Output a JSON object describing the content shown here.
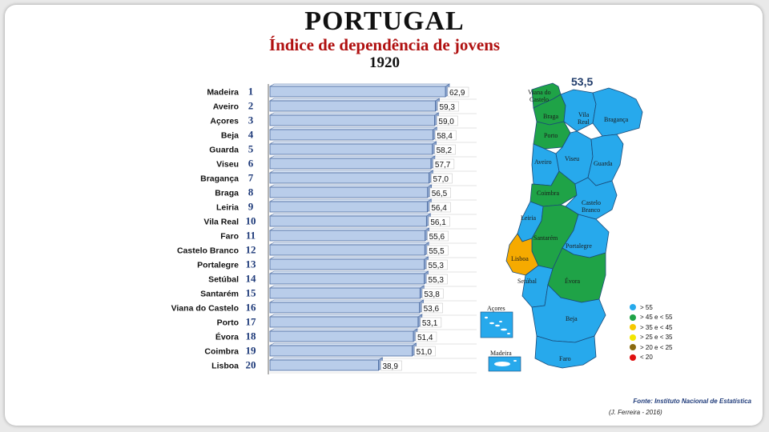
{
  "header": {
    "title": "PORTUGAL",
    "subtitle": "Índice de dependência de jovens",
    "year": "1920"
  },
  "map": {
    "national_value": "53,5",
    "islands": {
      "azores": "Açores",
      "madeira": "Madeira"
    },
    "regions": {
      "viana": "Viana do Castelo",
      "braga": "Braga",
      "vila_real": "Vila Real",
      "braganca": "Bragança",
      "porto": "Porto",
      "aveiro": "Aveiro",
      "viseu": "Viseu",
      "guarda": "Guarda",
      "coimbra": "Coimbra",
      "castelo_branco": "Castelo Branco",
      "leiria": "Leiria",
      "santarem": "Santarém",
      "portalegre": "Portalegre",
      "lisboa": "Lisboa",
      "setubal": "Setúbal",
      "evora": "Évora",
      "beja": "Beja",
      "faro": "Faro"
    },
    "colors": {
      "blue": "#27a9ec",
      "green": "#1fa347",
      "orange": "#f6aa00"
    }
  },
  "legend": [
    {
      "label": "> 55",
      "color": "#27a9ec"
    },
    {
      "label": "> 45 e < 55",
      "color": "#1fa347"
    },
    {
      "label": "> 35 e < 45",
      "color": "#f6c800"
    },
    {
      "label": "> 25 e < 35",
      "color": "#f2e600"
    },
    {
      "label": "> 20  e < 25",
      "color": "#8a6a10"
    },
    {
      "label": "< 20",
      "color": "#e01010"
    }
  ],
  "source": "Fonte: Instituto Nacional de Estatística",
  "author": "(J. Ferreira - 2016)",
  "chart_data": {
    "type": "bar",
    "orientation": "horizontal",
    "categories": [
      "Madeira",
      "Aveiro",
      "Açores",
      "Beja",
      "Guarda",
      "Viseu",
      "Bragança",
      "Braga",
      "Leiria",
      "Vila Real",
      "Faro",
      "Castelo Branco",
      "Portalegre",
      "Setúbal",
      "Santarém",
      "Viana do Castelo",
      "Porto",
      "Évora",
      "Coimbra",
      "Lisboa"
    ],
    "ranks": [
      "1",
      "2",
      "3",
      "4",
      "5",
      "6",
      "7",
      "8",
      "9",
      "10",
      "11",
      "12",
      "13",
      "14",
      "15",
      "16",
      "17",
      "18",
      "19",
      "20"
    ],
    "values": [
      62.9,
      59.3,
      59.0,
      58.4,
      58.2,
      57.7,
      57.0,
      56.5,
      56.4,
      56.1,
      55.6,
      55.5,
      55.3,
      55.3,
      53.8,
      53.6,
      53.1,
      51.4,
      51.0,
      38.9
    ],
    "value_labels": [
      "62,9",
      "59,3",
      "59,0",
      "58,4",
      "58,2",
      "57,7",
      "57,0",
      "56,5",
      "56,4",
      "56,1",
      "55,6",
      "55,5",
      "55,3",
      "55,3",
      "53,8",
      "53,6",
      "53,1",
      "51,4",
      "51,0",
      "38,9"
    ],
    "xlim": [
      0,
      66
    ],
    "bar_color": "#b9cdea",
    "bar_edge": "#4a6aa0"
  }
}
